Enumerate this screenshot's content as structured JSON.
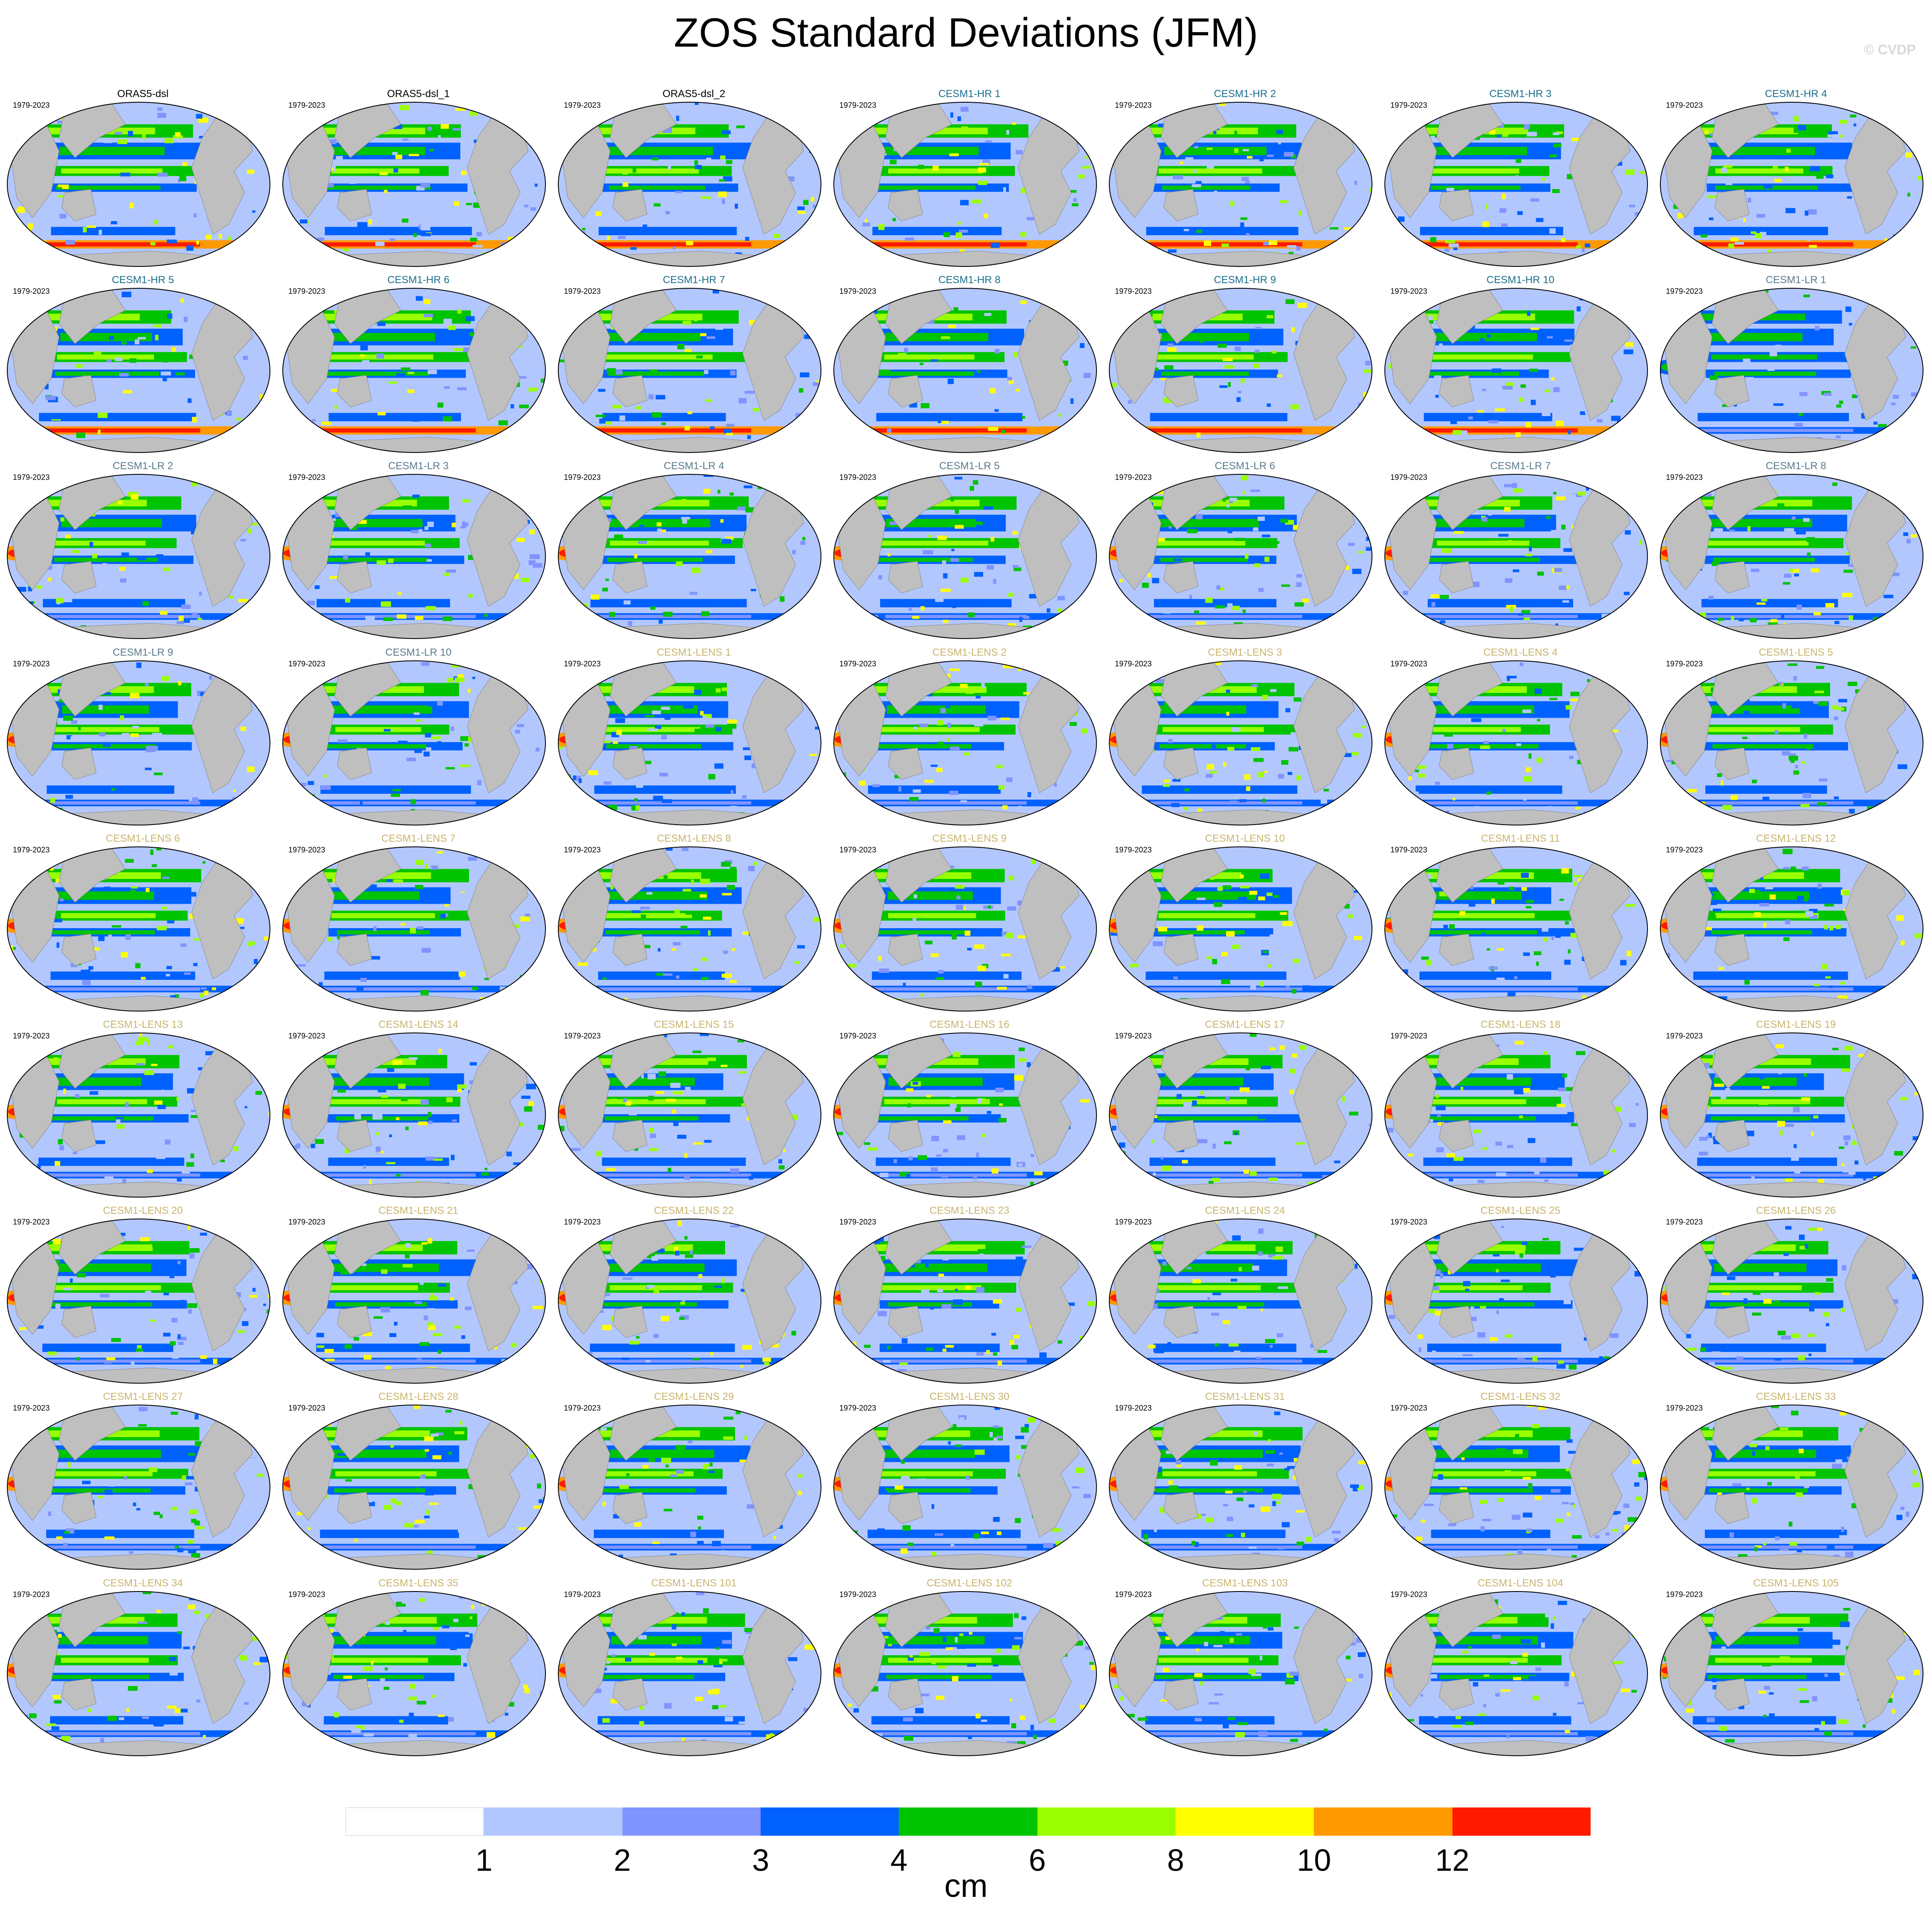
{
  "title": "ZOS Standard Deviations (JFM)",
  "watermark": "© CVDP",
  "colors": {
    "land": "#bfbfbf",
    "levels": [
      "#ffffff",
      "#b3c7ff",
      "#8094ff",
      "#0061ff",
      "#00c400",
      "#99ff00",
      "#ffff00",
      "#ff9900",
      "#ff1a00"
    ],
    "observation_title": "#000000",
    "hr_title": "#1a6e8c",
    "lr_title": "#5a7a8c",
    "lens_title": "#c8b46e"
  },
  "colorbar": {
    "unit": "cm",
    "ticks": [
      "1",
      "2",
      "3",
      "4",
      "6",
      "8",
      "10",
      "12"
    ]
  },
  "panels": [
    {
      "title": "ORAS5-dsl",
      "period": "1979-2023",
      "group": "obs",
      "max_level": 8
    },
    {
      "title": "ORAS5-dsl_1",
      "period": "1979-2023",
      "group": "obs",
      "max_level": 8
    },
    {
      "title": "ORAS5-dsl_2",
      "period": "1979-2023",
      "group": "obs",
      "max_level": 8
    },
    {
      "title": "CESM1-HR 1",
      "period": "1979-2023",
      "group": "hr",
      "max_level": 8
    },
    {
      "title": "CESM1-HR 2",
      "period": "1979-2023",
      "group": "hr",
      "max_level": 8
    },
    {
      "title": "CESM1-HR 3",
      "period": "1979-2023",
      "group": "hr",
      "max_level": 8
    },
    {
      "title": "CESM1-HR 4",
      "period": "1979-2023",
      "group": "hr",
      "max_level": 8
    },
    {
      "title": "CESM1-HR 5",
      "period": "1979-2023",
      "group": "hr",
      "max_level": 8
    },
    {
      "title": "CESM1-HR 6",
      "period": "1979-2023",
      "group": "hr",
      "max_level": 8
    },
    {
      "title": "CESM1-HR 7",
      "period": "1979-2023",
      "group": "hr",
      "max_level": 8
    },
    {
      "title": "CESM1-HR 8",
      "period": "1979-2023",
      "group": "hr",
      "max_level": 8
    },
    {
      "title": "CESM1-HR 9",
      "period": "1979-2023",
      "group": "hr",
      "max_level": 8
    },
    {
      "title": "CESM1-HR 10",
      "period": "1979-2023",
      "group": "hr",
      "max_level": 8
    },
    {
      "title": "CESM1-LR 1",
      "period": "1979-2023",
      "group": "lr",
      "max_level": 4
    },
    {
      "title": "CESM1-LR 2",
      "period": "1979-2023",
      "group": "lr",
      "max_level": 8
    },
    {
      "title": "CESM1-LR 3",
      "period": "1979-2023",
      "group": "lr",
      "max_level": 8
    },
    {
      "title": "CESM1-LR 4",
      "period": "1979-2023",
      "group": "lr",
      "max_level": 8
    },
    {
      "title": "CESM1-LR 5",
      "period": "1979-2023",
      "group": "lr",
      "max_level": 8
    },
    {
      "title": "CESM1-LR 6",
      "period": "1979-2023",
      "group": "lr",
      "max_level": 8
    },
    {
      "title": "CESM1-LR 7",
      "period": "1979-2023",
      "group": "lr",
      "max_level": 8
    },
    {
      "title": "CESM1-LR 8",
      "period": "1979-2023",
      "group": "lr",
      "max_level": 8
    },
    {
      "title": "CESM1-LR 9",
      "period": "1979-2023",
      "group": "lr",
      "max_level": 8
    },
    {
      "title": "CESM1-LR 10",
      "period": "1979-2023",
      "group": "lr",
      "max_level": 8
    },
    {
      "title": "CESM1-LENS 1",
      "period": "1979-2023",
      "group": "lens",
      "max_level": 8
    },
    {
      "title": "CESM1-LENS 2",
      "period": "1979-2023",
      "group": "lens",
      "max_level": 8
    },
    {
      "title": "CESM1-LENS 3",
      "period": "1979-2023",
      "group": "lens",
      "max_level": 8
    },
    {
      "title": "CESM1-LENS 4",
      "period": "1979-2023",
      "group": "lens",
      "max_level": 8
    },
    {
      "title": "CESM1-LENS 5",
      "period": "1979-2023",
      "group": "lens",
      "max_level": 8
    },
    {
      "title": "CESM1-LENS 6",
      "period": "1979-2023",
      "group": "lens",
      "max_level": 8
    },
    {
      "title": "CESM1-LENS 7",
      "period": "1979-2023",
      "group": "lens",
      "max_level": 8
    },
    {
      "title": "CESM1-LENS 8",
      "period": "1979-2023",
      "group": "lens",
      "max_level": 8
    },
    {
      "title": "CESM1-LENS 9",
      "period": "1979-2023",
      "group": "lens",
      "max_level": 8
    },
    {
      "title": "CESM1-LENS 10",
      "period": "1979-2023",
      "group": "lens",
      "max_level": 8
    },
    {
      "title": "CESM1-LENS 11",
      "period": "1979-2023",
      "group": "lens",
      "max_level": 8
    },
    {
      "title": "CESM1-LENS 12",
      "period": "1979-2023",
      "group": "lens",
      "max_level": 8
    },
    {
      "title": "CESM1-LENS 13",
      "period": "1979-2023",
      "group": "lens",
      "max_level": 8
    },
    {
      "title": "CESM1-LENS 14",
      "period": "1979-2023",
      "group": "lens",
      "max_level": 8
    },
    {
      "title": "CESM1-LENS 15",
      "period": "1979-2023",
      "group": "lens",
      "max_level": 8
    },
    {
      "title": "CESM1-LENS 16",
      "period": "1979-2023",
      "group": "lens",
      "max_level": 8
    },
    {
      "title": "CESM1-LENS 17",
      "period": "1979-2023",
      "group": "lens",
      "max_level": 8
    },
    {
      "title": "CESM1-LENS 18",
      "period": "1979-2023",
      "group": "lens",
      "max_level": 8
    },
    {
      "title": "CESM1-LENS 19",
      "period": "1979-2023",
      "group": "lens",
      "max_level": 8
    },
    {
      "title": "CESM1-LENS 20",
      "period": "1979-2023",
      "group": "lens",
      "max_level": 8
    },
    {
      "title": "CESM1-LENS 21",
      "period": "1979-2023",
      "group": "lens",
      "max_level": 8
    },
    {
      "title": "CESM1-LENS 22",
      "period": "1979-2023",
      "group": "lens",
      "max_level": 8
    },
    {
      "title": "CESM1-LENS 23",
      "period": "1979-2023",
      "group": "lens",
      "max_level": 8
    },
    {
      "title": "CESM1-LENS 24",
      "period": "1979-2023",
      "group": "lens",
      "max_level": 8
    },
    {
      "title": "CESM1-LENS 25",
      "period": "1979-2023",
      "group": "lens",
      "max_level": 8
    },
    {
      "title": "CESM1-LENS 26",
      "period": "1979-2023",
      "group": "lens",
      "max_level": 8
    },
    {
      "title": "CESM1-LENS 27",
      "period": "1979-2023",
      "group": "lens",
      "max_level": 8
    },
    {
      "title": "CESM1-LENS 28",
      "period": "1979-2023",
      "group": "lens",
      "max_level": 8
    },
    {
      "title": "CESM1-LENS 29",
      "period": "1979-2023",
      "group": "lens",
      "max_level": 8
    },
    {
      "title": "CESM1-LENS 30",
      "period": "1979-2023",
      "group": "lens",
      "max_level": 8
    },
    {
      "title": "CESM1-LENS 31",
      "period": "1979-2023",
      "group": "lens",
      "max_level": 8
    },
    {
      "title": "CESM1-LENS 32",
      "period": "1979-2023",
      "group": "lens",
      "max_level": 8
    },
    {
      "title": "CESM1-LENS 33",
      "period": "1979-2023",
      "group": "lens",
      "max_level": 8
    },
    {
      "title": "CESM1-LENS 34",
      "period": "1979-2023",
      "group": "lens",
      "max_level": 8
    },
    {
      "title": "CESM1-LENS 35",
      "period": "1979-2023",
      "group": "lens",
      "max_level": 8
    },
    {
      "title": "CESM1-LENS 101",
      "period": "1979-2023",
      "group": "lens",
      "max_level": 8
    },
    {
      "title": "CESM1-LENS 102",
      "period": "1979-2023",
      "group": "lens",
      "max_level": 8
    },
    {
      "title": "CESM1-LENS 103",
      "period": "1979-2023",
      "group": "lens",
      "max_level": 8
    },
    {
      "title": "CESM1-LENS 104",
      "period": "1979-2023",
      "group": "lens",
      "max_level": 8
    },
    {
      "title": "CESM1-LENS 105",
      "period": "1979-2023",
      "group": "lens",
      "max_level": 8
    }
  ]
}
